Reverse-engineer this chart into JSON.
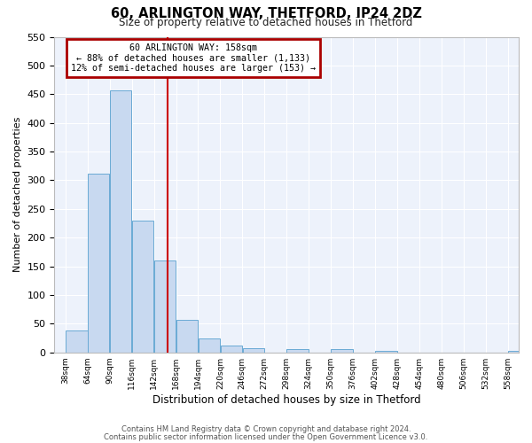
{
  "title": "60, ARLINGTON WAY, THETFORD, IP24 2DZ",
  "subtitle": "Size of property relative to detached houses in Thetford",
  "xlabel": "Distribution of detached houses by size in Thetford",
  "ylabel": "Number of detached properties",
  "bar_values": [
    38,
    311,
    456,
    229,
    160,
    57,
    25,
    12,
    8,
    0,
    5,
    0,
    5,
    0,
    2,
    0,
    0,
    0,
    0,
    0,
    2
  ],
  "bin_edges": [
    38,
    64,
    90,
    116,
    142,
    168,
    194,
    220,
    246,
    272,
    298,
    324,
    350,
    376,
    402,
    428,
    454,
    480,
    506,
    532,
    558,
    584
  ],
  "tick_labels": [
    "38sqm",
    "64sqm",
    "90sqm",
    "116sqm",
    "142sqm",
    "168sqm",
    "194sqm",
    "220sqm",
    "246sqm",
    "272sqm",
    "298sqm",
    "324sqm",
    "350sqm",
    "376sqm",
    "402sqm",
    "428sqm",
    "454sqm",
    "480sqm",
    "506sqm",
    "532sqm",
    "558sqm"
  ],
  "bar_color": "#c8d9f0",
  "bar_edge_color": "#6aaad4",
  "plot_bg_color": "#edf2fb",
  "grid_color": "#ffffff",
  "fig_bg_color": "#ffffff",
  "vline_x": 158,
  "vline_color": "#cc0000",
  "ylim": [
    0,
    550
  ],
  "yticks": [
    0,
    50,
    100,
    150,
    200,
    250,
    300,
    350,
    400,
    450,
    500,
    550
  ],
  "annotation_title": "60 ARLINGTON WAY: 158sqm",
  "annotation_line1": "← 88% of detached houses are smaller (1,133)",
  "annotation_line2": "12% of semi-detached houses are larger (153) →",
  "annotation_box_edge_color": "#aa0000",
  "footer_line1": "Contains HM Land Registry data © Crown copyright and database right 2024.",
  "footer_line2": "Contains public sector information licensed under the Open Government Licence v3.0."
}
